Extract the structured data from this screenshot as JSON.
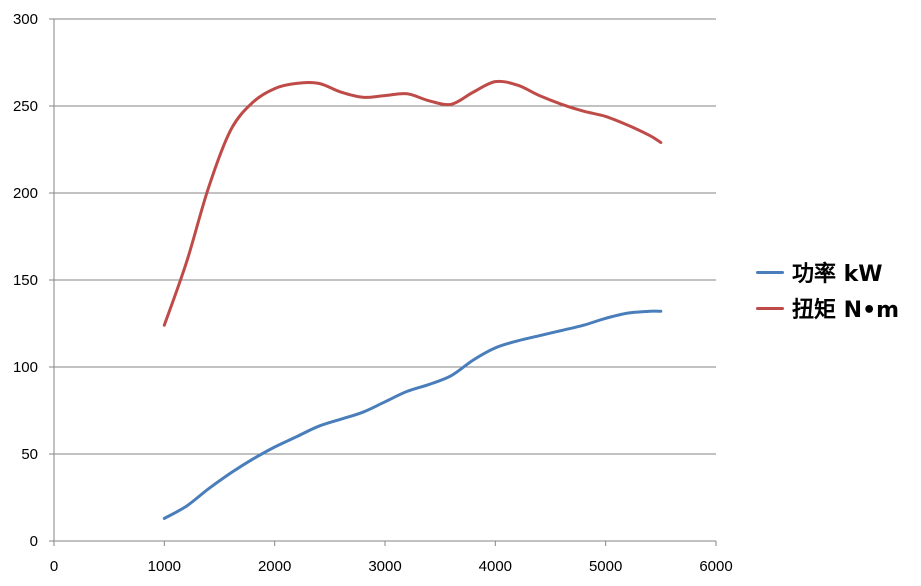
{
  "chart_data": {
    "type": "line",
    "title": "",
    "xlabel": "",
    "ylabel": "",
    "xlim": [
      0,
      6000
    ],
    "ylim": [
      0,
      300
    ],
    "x_ticks": [
      0,
      1000,
      2000,
      3000,
      4000,
      5000,
      6000
    ],
    "y_ticks": [
      0,
      50,
      100,
      150,
      200,
      250,
      300
    ],
    "grid": "horizontal",
    "legend_position": "right",
    "series": [
      {
        "name": "功率 kW",
        "color": "#4a7ebb",
        "x": [
          1000,
          1200,
          1400,
          1600,
          1800,
          2000,
          2200,
          2400,
          2600,
          2800,
          3000,
          3200,
          3400,
          3600,
          3800,
          4000,
          4200,
          4400,
          4600,
          4800,
          5000,
          5200,
          5400,
          5500
        ],
        "y": [
          13,
          20,
          30,
          39,
          47,
          54,
          60,
          66,
          70,
          74,
          80,
          86,
          90,
          95,
          104,
          111,
          115,
          118,
          121,
          124,
          128,
          131,
          132,
          132
        ]
      },
      {
        "name": "扭矩 N•m",
        "color": "#be4b48",
        "x": [
          1000,
          1200,
          1400,
          1600,
          1800,
          2000,
          2200,
          2400,
          2600,
          2800,
          3000,
          3200,
          3400,
          3600,
          3800,
          4000,
          4200,
          4400,
          4600,
          4800,
          5000,
          5200,
          5400,
          5500
        ],
        "y": [
          124,
          160,
          203,
          236,
          252,
          260,
          263,
          263,
          258,
          255,
          256,
          257,
          253,
          251,
          258,
          264,
          262,
          256,
          251,
          247,
          244,
          239,
          233,
          229
        ]
      }
    ]
  }
}
